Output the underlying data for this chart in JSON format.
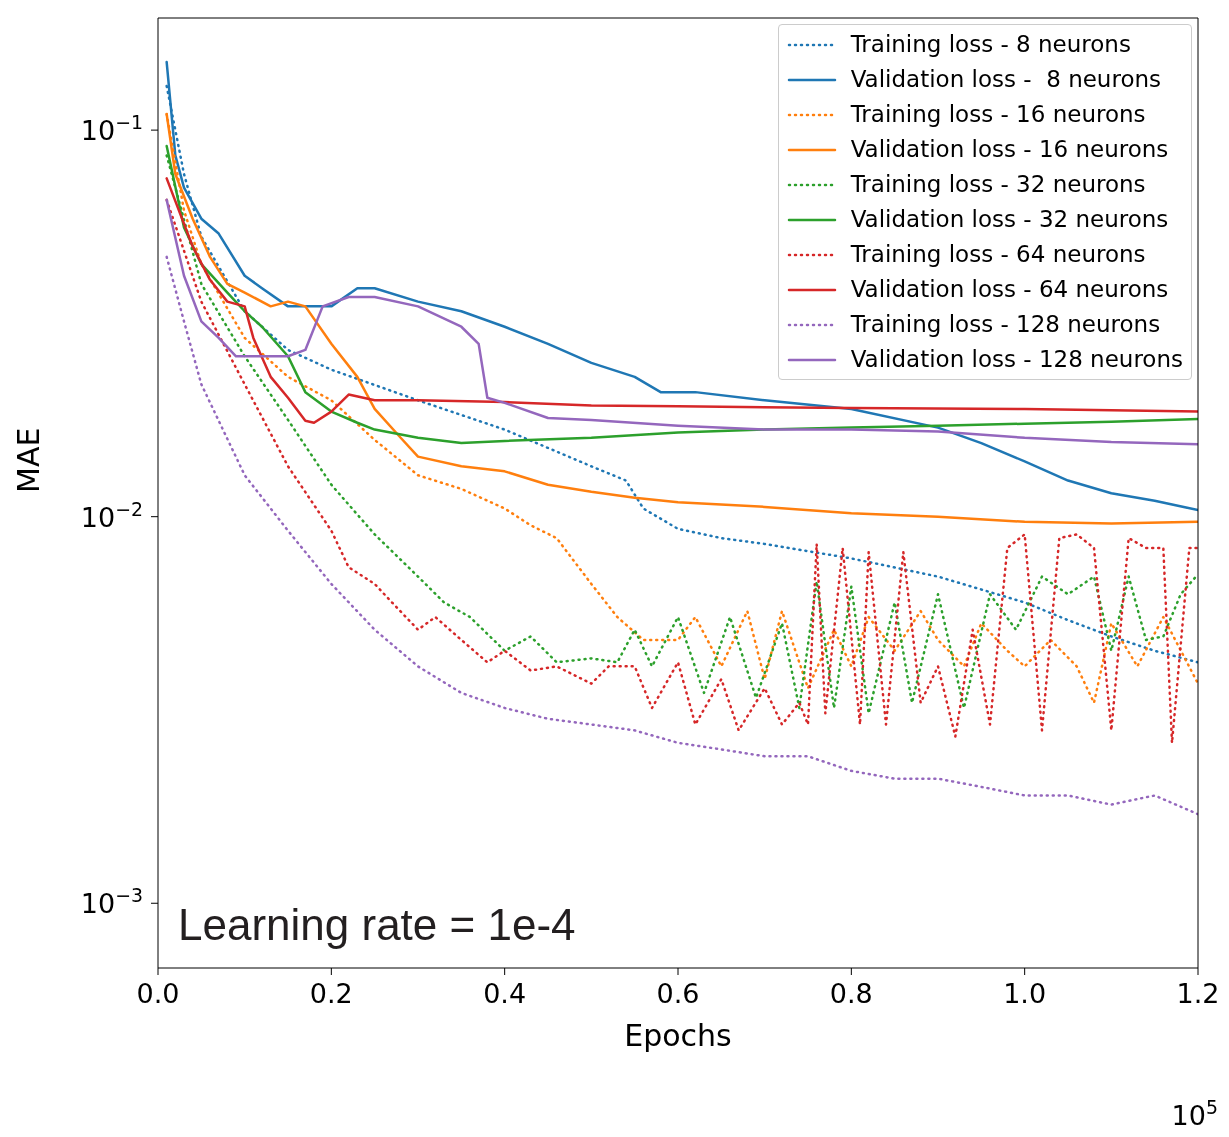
{
  "chart_data": {
    "type": "line",
    "xlabel": "Epochs",
    "ylabel": "MAE",
    "log": "y",
    "legend": "top right",
    "grid": false,
    "xlim": [
      0,
      1.2
    ],
    "xticks": [
      {
        "value": 0,
        "label": "0.0"
      },
      0.2,
      0.4,
      0.6,
      0.8,
      {
        "value": 1,
        "label": "1.0"
      },
      1.2
    ],
    "ylim": [
      0.00068,
      0.195
    ],
    "yticks": [
      {
        "value": 0.001,
        "label": "10$^{−3}$"
      },
      {
        "value": 0.01,
        "label": "10$^{−2}$"
      },
      {
        "value": 0.1,
        "label": "10$^{−1}$"
      }
    ],
    "annotations": [
      "Learning rate = 1e-4",
      "10$^{5}$"
    ],
    "series": [
      {
        "name": "Training loss - 8 neurons",
        "color": "#1f77b4",
        "line_style": "dotted",
        "x": [
          0.01,
          0.03,
          0.05,
          0.1,
          0.15,
          0.2,
          0.3,
          0.4,
          0.5,
          0.54,
          0.56,
          0.6,
          0.65,
          0.7,
          0.8,
          0.9,
          1.0,
          1.05,
          1.1,
          1.15,
          1.2
        ],
        "values": [
          0.13,
          0.077,
          0.053,
          0.034,
          0.027,
          0.024,
          0.02,
          0.0168,
          0.0135,
          0.0124,
          0.0105,
          0.0093,
          0.0088,
          0.0085,
          0.0078,
          0.007,
          0.006,
          0.0054,
          0.0049,
          0.0045,
          0.0042
        ]
      },
      {
        "name": "Validation loss -  8 neurons",
        "color": "#1f77b4",
        "line_style": "solid",
        "x": [
          0.01,
          0.02,
          0.03,
          0.05,
          0.07,
          0.1,
          0.12,
          0.15,
          0.2,
          0.23,
          0.25,
          0.3,
          0.35,
          0.4,
          0.45,
          0.5,
          0.55,
          0.58,
          0.62,
          0.7,
          0.8,
          0.9,
          0.95,
          1.0,
          1.05,
          1.1,
          1.15,
          1.2
        ],
        "values": [
          0.15,
          0.086,
          0.071,
          0.059,
          0.054,
          0.042,
          0.039,
          0.035,
          0.035,
          0.039,
          0.039,
          0.036,
          0.034,
          0.031,
          0.028,
          0.025,
          0.023,
          0.021,
          0.021,
          0.02,
          0.019,
          0.017,
          0.0155,
          0.0139,
          0.0124,
          0.0115,
          0.011,
          0.0104
        ]
      },
      {
        "name": "Training loss - 16 neurons",
        "color": "#ff7f0e",
        "line_style": "dotted",
        "x": [
          0.01,
          0.03,
          0.05,
          0.1,
          0.15,
          0.2,
          0.25,
          0.3,
          0.35,
          0.4,
          0.43,
          0.46,
          0.5,
          0.53,
          0.56,
          0.6,
          0.62,
          0.65,
          0.68,
          0.7,
          0.72,
          0.75,
          0.78,
          0.8,
          0.82,
          0.85,
          0.88,
          0.9,
          0.93,
          0.95,
          0.98,
          1.0,
          1.03,
          1.06,
          1.08,
          1.1,
          1.13,
          1.16,
          1.2
        ],
        "values": [
          0.11,
          0.062,
          0.045,
          0.029,
          0.023,
          0.02,
          0.0158,
          0.0128,
          0.0118,
          0.0105,
          0.0095,
          0.0088,
          0.0067,
          0.0055,
          0.0048,
          0.0048,
          0.0055,
          0.0041,
          0.0057,
          0.0038,
          0.0057,
          0.0036,
          0.0051,
          0.0041,
          0.0055,
          0.0045,
          0.0057,
          0.0048,
          0.0041,
          0.0053,
          0.0045,
          0.0041,
          0.0048,
          0.0041,
          0.0033,
          0.0053,
          0.0041,
          0.0055,
          0.0037
        ]
      },
      {
        "name": "Validation loss - 16 neurons",
        "color": "#ff7f0e",
        "line_style": "solid",
        "x": [
          0.01,
          0.02,
          0.04,
          0.06,
          0.08,
          0.1,
          0.13,
          0.15,
          0.17,
          0.2,
          0.23,
          0.25,
          0.28,
          0.3,
          0.35,
          0.4,
          0.45,
          0.5,
          0.55,
          0.6,
          0.7,
          0.8,
          0.9,
          1.0,
          1.1,
          1.2
        ],
        "values": [
          0.11,
          0.077,
          0.059,
          0.047,
          0.04,
          0.038,
          0.035,
          0.036,
          0.035,
          0.028,
          0.023,
          0.019,
          0.016,
          0.0143,
          0.0135,
          0.0131,
          0.0121,
          0.0116,
          0.0112,
          0.0109,
          0.0106,
          0.0102,
          0.01,
          0.0097,
          0.0096,
          0.0097
        ]
      },
      {
        "name": "Training loss - 32 neurons",
        "color": "#2ca02c",
        "line_style": "dotted",
        "x": [
          0.01,
          0.05,
          0.1,
          0.15,
          0.2,
          0.25,
          0.3,
          0.33,
          0.36,
          0.4,
          0.43,
          0.46,
          0.5,
          0.53,
          0.55,
          0.57,
          0.6,
          0.63,
          0.66,
          0.69,
          0.72,
          0.74,
          0.76,
          0.78,
          0.8,
          0.82,
          0.85,
          0.87,
          0.9,
          0.93,
          0.96,
          0.99,
          1.02,
          1.05,
          1.08,
          1.1,
          1.12,
          1.14,
          1.16,
          1.18,
          1.2
        ],
        "values": [
          0.086,
          0.04,
          0.026,
          0.0178,
          0.0121,
          0.009,
          0.007,
          0.006,
          0.0055,
          0.0045,
          0.0049,
          0.0042,
          0.0043,
          0.0042,
          0.0051,
          0.0041,
          0.0055,
          0.0035,
          0.0055,
          0.0034,
          0.0053,
          0.0032,
          0.0068,
          0.0032,
          0.0066,
          0.0031,
          0.006,
          0.0033,
          0.0063,
          0.0032,
          0.0063,
          0.0051,
          0.007,
          0.0063,
          0.007,
          0.0045,
          0.007,
          0.0048,
          0.0049,
          0.0063,
          0.0071
        ]
      },
      {
        "name": "Validation loss - 32 neurons",
        "color": "#2ca02c",
        "line_style": "solid",
        "x": [
          0.01,
          0.03,
          0.05,
          0.08,
          0.1,
          0.12,
          0.15,
          0.17,
          0.2,
          0.23,
          0.25,
          0.3,
          0.35,
          0.4,
          0.5,
          0.6,
          0.7,
          0.8,
          0.9,
          1.0,
          1.1,
          1.2
        ],
        "values": [
          0.091,
          0.056,
          0.045,
          0.038,
          0.034,
          0.031,
          0.026,
          0.021,
          0.0187,
          0.0175,
          0.0168,
          0.016,
          0.0155,
          0.0157,
          0.016,
          0.0165,
          0.0168,
          0.017,
          0.0172,
          0.0174,
          0.0176,
          0.0179
        ]
      },
      {
        "name": "Training loss - 64 neurons",
        "color": "#d62728",
        "line_style": "dotted",
        "x": [
          0.01,
          0.05,
          0.1,
          0.15,
          0.2,
          0.22,
          0.25,
          0.27,
          0.3,
          0.32,
          0.35,
          0.38,
          0.4,
          0.43,
          0.46,
          0.5,
          0.52,
          0.55,
          0.57,
          0.6,
          0.62,
          0.65,
          0.67,
          0.7,
          0.72,
          0.74,
          0.75,
          0.76,
          0.77,
          0.79,
          0.81,
          0.82,
          0.84,
          0.86,
          0.88,
          0.9,
          0.92,
          0.94,
          0.96,
          0.98,
          1.0,
          1.02,
          1.04,
          1.06,
          1.08,
          1.1,
          1.12,
          1.14,
          1.16,
          1.17,
          1.19,
          1.2
        ],
        "values": [
          0.066,
          0.036,
          0.022,
          0.0135,
          0.0092,
          0.0074,
          0.0067,
          0.006,
          0.0051,
          0.0055,
          0.0048,
          0.0042,
          0.0045,
          0.004,
          0.0041,
          0.0037,
          0.0041,
          0.0041,
          0.0032,
          0.0042,
          0.0029,
          0.0038,
          0.0028,
          0.0036,
          0.0029,
          0.0033,
          0.0029,
          0.0085,
          0.0031,
          0.0083,
          0.0029,
          0.0081,
          0.0029,
          0.0081,
          0.0033,
          0.0041,
          0.0027,
          0.0051,
          0.0029,
          0.0083,
          0.009,
          0.0028,
          0.0088,
          0.009,
          0.0083,
          0.0028,
          0.0088,
          0.0083,
          0.0083,
          0.0026,
          0.0083,
          0.0083
        ]
      },
      {
        "name": "Validation loss - 64 neurons",
        "color": "#d62728",
        "line_style": "solid",
        "x": [
          0.01,
          0.04,
          0.06,
          0.08,
          0.1,
          0.11,
          0.13,
          0.15,
          0.17,
          0.18,
          0.2,
          0.22,
          0.25,
          0.3,
          0.4,
          0.5,
          0.6,
          0.8,
          1.0,
          1.2
        ],
        "values": [
          0.075,
          0.05,
          0.041,
          0.036,
          0.035,
          0.029,
          0.023,
          0.0203,
          0.0177,
          0.0175,
          0.0187,
          0.0207,
          0.02,
          0.02,
          0.0198,
          0.0194,
          0.0193,
          0.0191,
          0.019,
          0.0187
        ]
      },
      {
        "name": "Training loss - 128 neurons",
        "color": "#9467bd",
        "line_style": "dotted",
        "x": [
          0.01,
          0.03,
          0.05,
          0.1,
          0.15,
          0.2,
          0.25,
          0.3,
          0.35,
          0.4,
          0.45,
          0.5,
          0.55,
          0.6,
          0.65,
          0.7,
          0.75,
          0.8,
          0.85,
          0.9,
          0.95,
          1.0,
          1.05,
          1.1,
          1.15,
          1.2
        ],
        "values": [
          0.047,
          0.032,
          0.022,
          0.0128,
          0.0092,
          0.0067,
          0.0051,
          0.0041,
          0.0035,
          0.0032,
          0.003,
          0.0029,
          0.0028,
          0.0026,
          0.0025,
          0.0024,
          0.0024,
          0.0022,
          0.0021,
          0.0021,
          0.002,
          0.0019,
          0.0019,
          0.0018,
          0.0019,
          0.0017
        ]
      },
      {
        "name": "Validation loss - 128 neurons",
        "color": "#9467bd",
        "line_style": "solid",
        "x": [
          0.01,
          0.03,
          0.05,
          0.07,
          0.09,
          0.12,
          0.15,
          0.17,
          0.19,
          0.22,
          0.25,
          0.3,
          0.35,
          0.37,
          0.38,
          0.4,
          0.45,
          0.5,
          0.6,
          0.7,
          0.8,
          0.9,
          1.0,
          1.1,
          1.2
        ],
        "values": [
          0.066,
          0.042,
          0.032,
          0.029,
          0.026,
          0.026,
          0.026,
          0.027,
          0.035,
          0.037,
          0.037,
          0.035,
          0.031,
          0.028,
          0.0203,
          0.0197,
          0.018,
          0.0178,
          0.0172,
          0.0168,
          0.0168,
          0.0166,
          0.016,
          0.0156,
          0.0154
        ]
      }
    ]
  }
}
